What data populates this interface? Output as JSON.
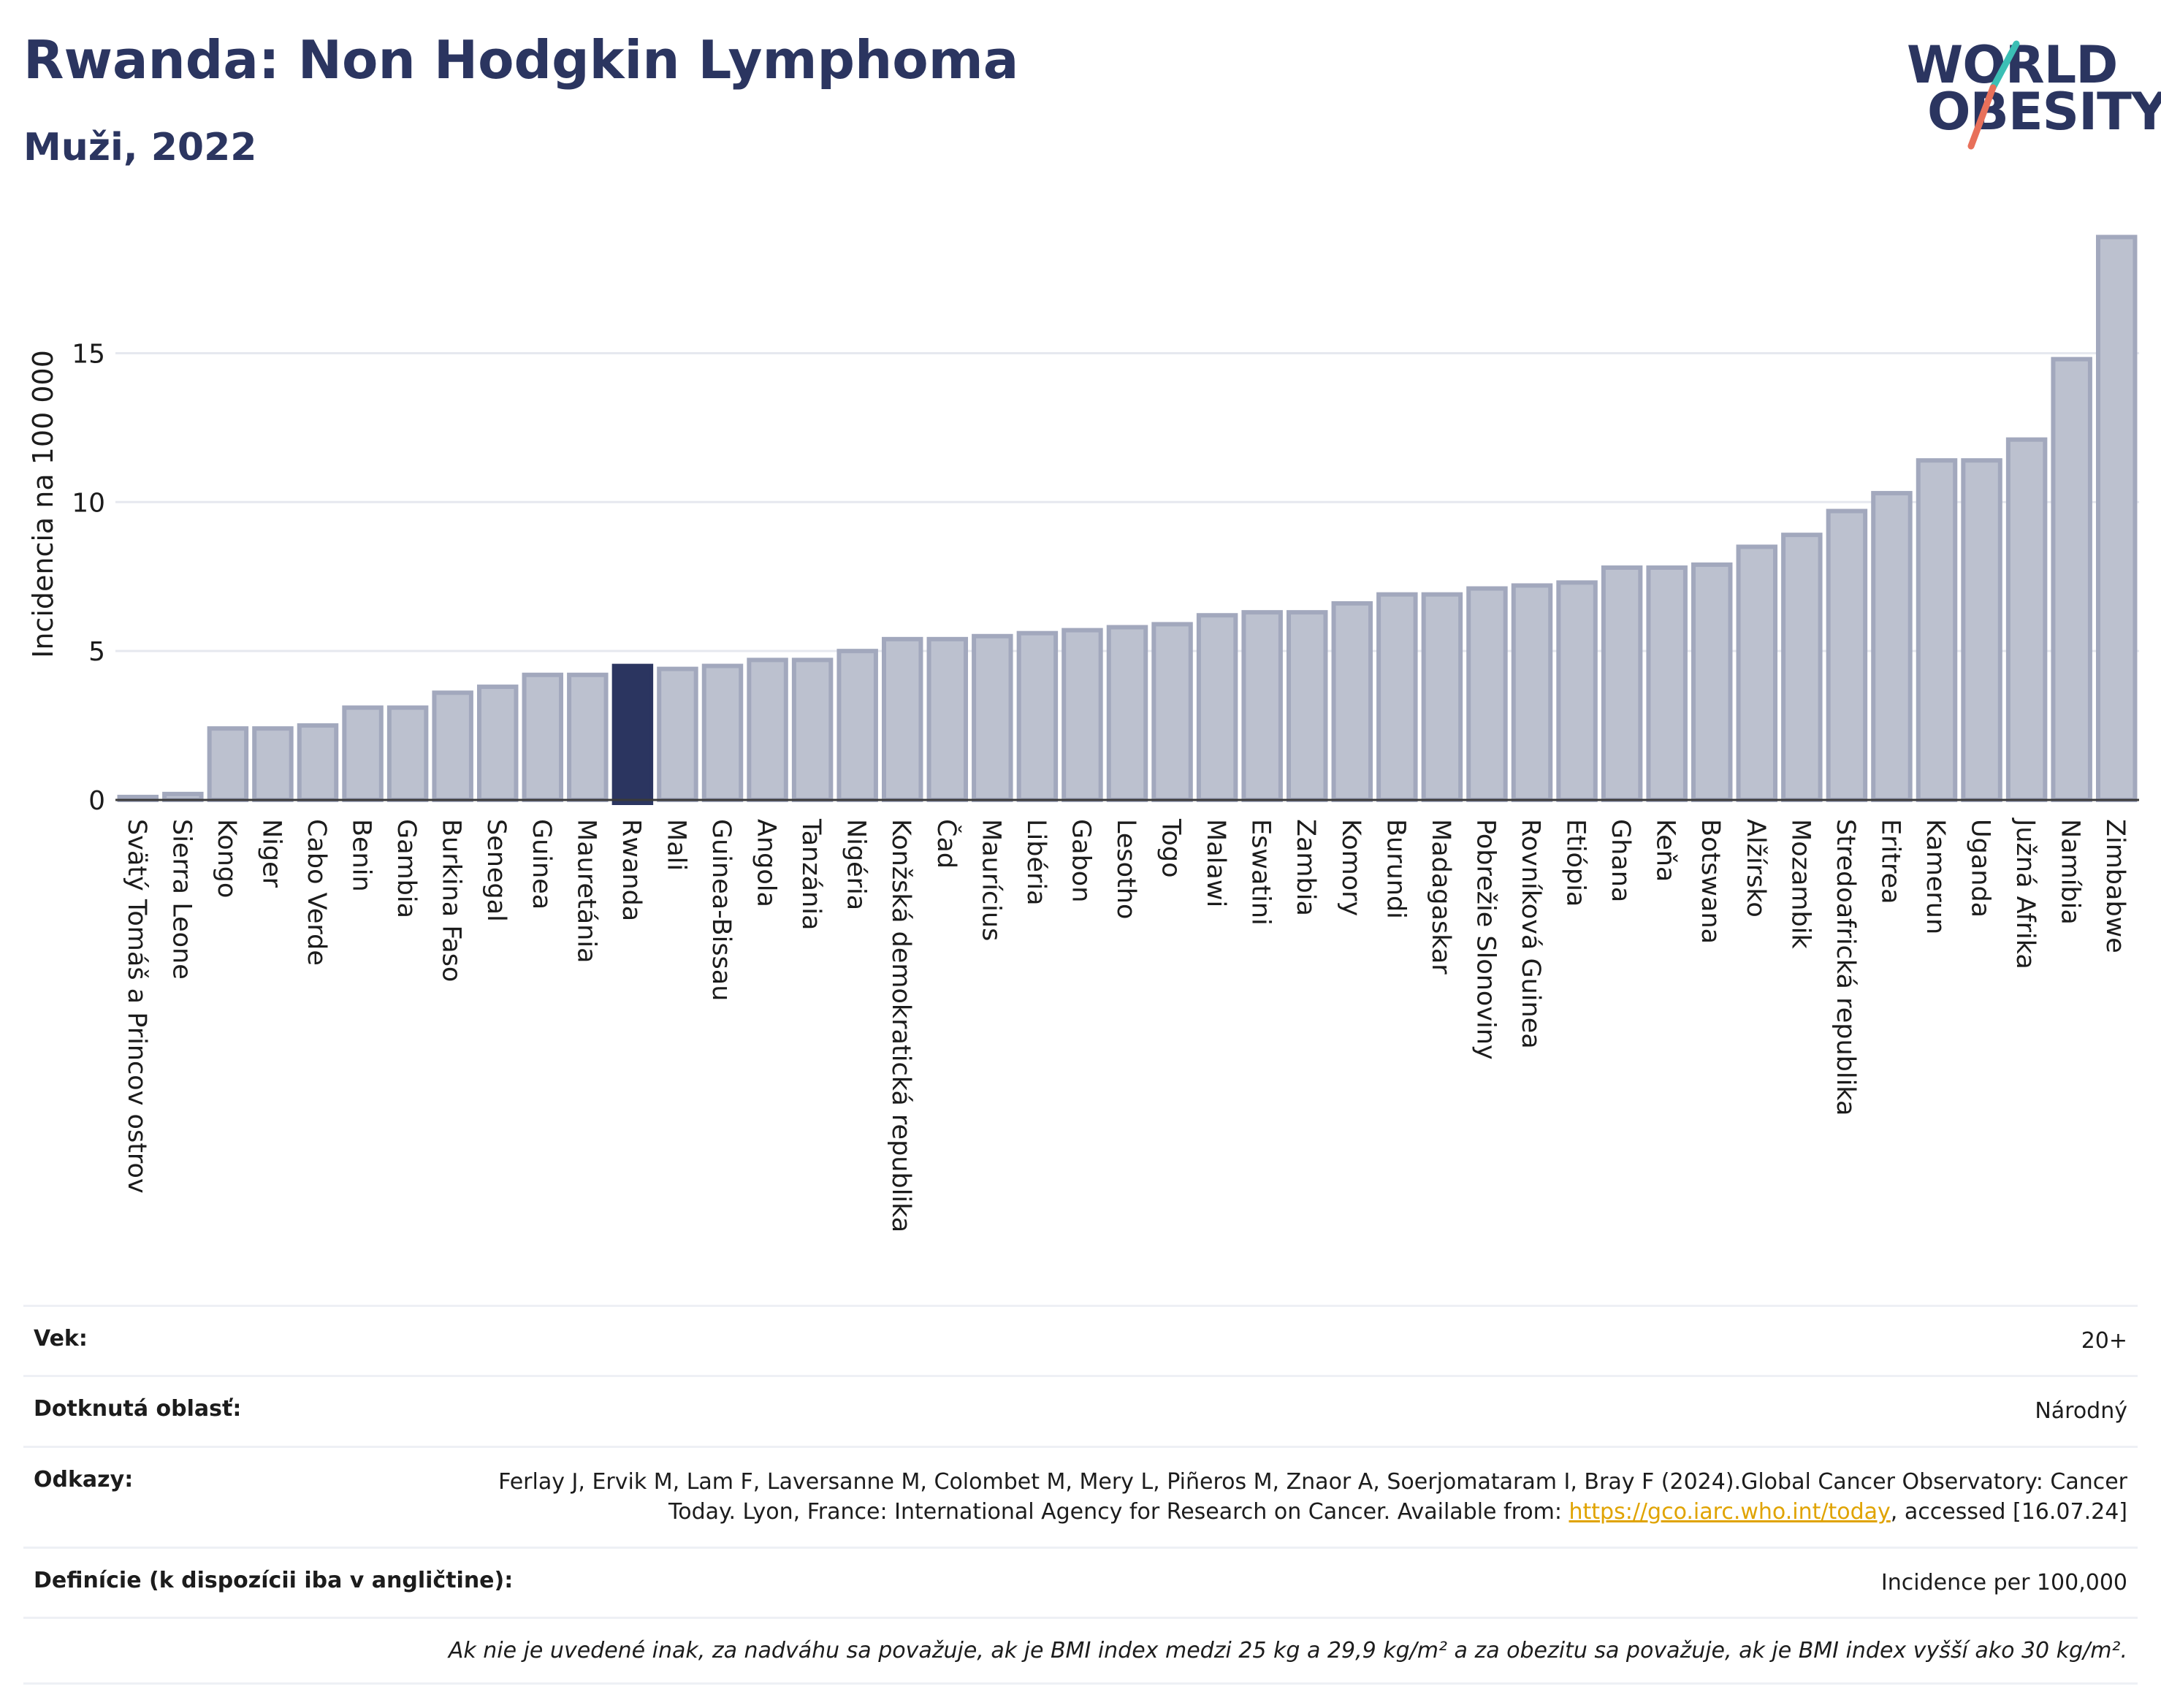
{
  "header": {
    "title": "Rwanda: Non Hodgkin Lymphoma",
    "subtitle": "Muži, 2022"
  },
  "logo": {
    "line1": "WORLD",
    "line2": "OBESITY",
    "alt": "World Obesity logo"
  },
  "chart_data": {
    "type": "bar",
    "ylabel": "Incidencia na 100 000",
    "xlabel": "",
    "ylim": [
      0,
      19.5
    ],
    "yticks": [
      0,
      5,
      10,
      15
    ],
    "grid": true,
    "highlight": "Rwanda",
    "colors": {
      "bar": "#bcc1cf",
      "bar_border": "#a2a8bd",
      "highlight": "#2b3560",
      "grid": "#e6e8ef",
      "axis": "#3a3a3a"
    },
    "categories": [
      "Svätý Tomáš a Princov ostrov",
      "Sierra Leone",
      "Kongo",
      "Niger",
      "Cabo Verde",
      "Benin",
      "Gambia",
      "Burkina Faso",
      "Senegal",
      "Guinea",
      "Mauretánia",
      "Rwanda",
      "Mali",
      "Guinea-Bissau",
      "Angola",
      "Tanzánia",
      "Nigéria",
      "Konžská demokratická republika",
      "Čad",
      "Maurícius",
      "Libéria",
      "Gabon",
      "Lesotho",
      "Togo",
      "Malawi",
      "Eswatini",
      "Zambia",
      "Komory",
      "Burundi",
      "Madagaskar",
      "Pobrežie Slonoviny",
      "Rovníková Guinea",
      "Etiópia",
      "Ghana",
      "Keňa",
      "Botswana",
      "Alžírsko",
      "Mozambik",
      "Stredoafrická republika",
      "Eritrea",
      "Kamerun",
      "Uganda",
      "Južná Afrika",
      "Namíbia",
      "Zimbabwe"
    ],
    "values": [
      0.1,
      0.2,
      2.4,
      2.4,
      2.5,
      3.1,
      3.1,
      3.6,
      3.8,
      4.2,
      4.2,
      4.4,
      4.4,
      4.5,
      4.7,
      4.7,
      5.0,
      5.4,
      5.4,
      5.5,
      5.6,
      5.7,
      5.8,
      5.9,
      6.2,
      6.3,
      6.3,
      6.6,
      6.9,
      6.9,
      7.1,
      7.2,
      7.3,
      7.8,
      7.8,
      7.9,
      8.5,
      8.9,
      9.7,
      10.3,
      11.4,
      11.4,
      12.1,
      14.8,
      18.9
    ]
  },
  "meta": {
    "age_label": "Vek:",
    "age_value": "20+",
    "area_label": "Dotknutá oblasť:",
    "area_value": "Národný",
    "refs_label": "Odkazy:",
    "refs_text1": "Ferlay J, Ervik M, Lam F, Laversanne M, Colombet M, Mery L, Piñeros M, Znaor A, Soerjomataram I, Bray F (2024).Global Cancer Observatory: Cancer Today. Lyon, France: International Agency for Research on Cancer. Available from: ",
    "refs_link": "https://gco.iarc.who.int/today",
    "refs_text2": ", accessed [16.07.24]",
    "def_label": "Definície (k dispozícii iba v angličtine):",
    "def_value": "Incidence per 100,000",
    "note": "Ak nie je uvedené inak, za nadváhu sa považuje, ak je BMI index medzi 25 kg a 29,9 kg/m² a za obezitu sa považuje, ak je BMI index vyšší ako 30 kg/m²."
  }
}
